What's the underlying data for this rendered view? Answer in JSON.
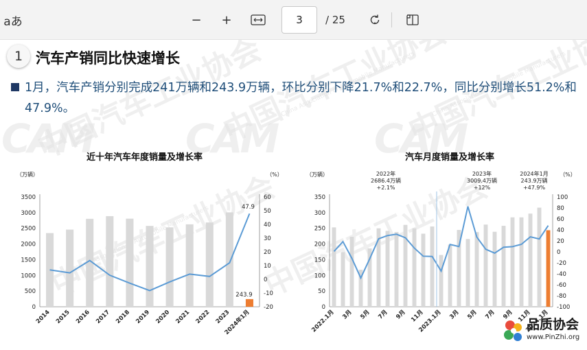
{
  "toolbar": {
    "read_aloud_label": "aあ",
    "zoom_out_symbol": "−",
    "zoom_in_symbol": "+",
    "page_current": "3",
    "page_total": "/ 25"
  },
  "page": {
    "section_number": "1",
    "section_title": "汽车产销同比快速增长",
    "paragraph": "1月，汽车产销分别完成241万辆和243.9万辆，环比分别下降21.7%和22.7%，同比分别增长51.2%和47.9%。",
    "watermark": "中国汽车工业协会",
    "watermark_en": "China Association of Automobile Manufacturers",
    "watermark_logo": "CAM"
  },
  "site_logo": {
    "name": "品质协会",
    "url": "www.PinZhi.org"
  },
  "chart_data": [
    {
      "type": "bar",
      "title": "近十年汽车年度销量及增长率",
      "ylabel": "（万辆）",
      "y2label": "（%）",
      "categories": [
        "2014",
        "2015",
        "2016",
        "2017",
        "2018",
        "2019",
        "2020",
        "2021",
        "2022",
        "2023",
        "2024年1月"
      ],
      "yticks": [
        "3500",
        "3000",
        "2500",
        "2000",
        "1500",
        "1000",
        "500",
        "0"
      ],
      "y2ticks": [
        "60",
        "50",
        "40",
        "30",
        "20",
        "10",
        "0",
        "-10",
        "-20"
      ],
      "ylim": [
        0,
        3500
      ],
      "y2lim": [
        -20,
        60
      ],
      "series": [
        {
          "values": [
            2349,
            2460,
            2803,
            2888,
            2808,
            2577,
            2531,
            2628,
            2686,
            3009,
            243.9
          ]
        },
        {
          "values": [
            6.9,
            4.7,
            13.7,
            3.0,
            -2.8,
            -8.2,
            -1.9,
            3.8,
            2.1,
            12.0,
            47.9
          ]
        }
      ],
      "highlight_color": "#ed7d31",
      "bar_color": "#d9d9d9",
      "line_color": "#5b9bd5",
      "annotations": [
        "47.9",
        "243.9"
      ]
    },
    {
      "type": "bar",
      "title": "汽车月度销量及增长率",
      "ylabel": "（万辆）",
      "y2label": "（%）",
      "categories": [
        "2022.1月",
        "",
        "3月",
        "",
        "5月",
        "",
        "7月",
        "",
        "9月",
        "",
        "11月",
        "",
        "2023.1月",
        "",
        "3月",
        "",
        "5月",
        "",
        "7月",
        "",
        "9月",
        "",
        "11月",
        "",
        "2024.1月"
      ],
      "yticks": [
        "350",
        "300",
        "250",
        "200",
        "150",
        "100",
        "50",
        "0"
      ],
      "y2ticks": [
        "100",
        "80",
        "60",
        "40",
        "20",
        "0",
        "-20",
        "-40",
        "-60",
        "-80",
        "-100"
      ],
      "ylim": [
        0,
        350
      ],
      "y2lim": [
        -100,
        100
      ],
      "series": [
        {
          "values": [
            253,
            174,
            223,
            118,
            186,
            250,
            242,
            238,
            261,
            250,
            233,
            256,
            165,
            198,
            245,
            216,
            238,
            262,
            239,
            258,
            285,
            285,
            297,
            316,
            244
          ]
        },
        {
          "values": [
            0.9,
            18.7,
            -11.7,
            -47.6,
            -12.6,
            23.8,
            29.7,
            32.1,
            25.7,
            6.9,
            -7.9,
            -8.4,
            -35,
            13.5,
            9.7,
            82.7,
            26.9,
            4.8,
            -2.3,
            8.4,
            9.5,
            13.8,
            27.4,
            23.5,
            47.9
          ]
        }
      ],
      "highlight_color": "#ed7d31",
      "bar_color": "#d9d9d9",
      "line_color": "#5b9bd5",
      "annotations": [
        {
          "lines": [
            "2022年",
            "2686.4万辆",
            "+2.1%"
          ]
        },
        {
          "lines": [
            "2023年",
            "3009.4万辆",
            "+12%"
          ]
        },
        {
          "lines": [
            "2024年1月",
            "243.9万辆",
            "+47.9%"
          ]
        }
      ]
    }
  ]
}
